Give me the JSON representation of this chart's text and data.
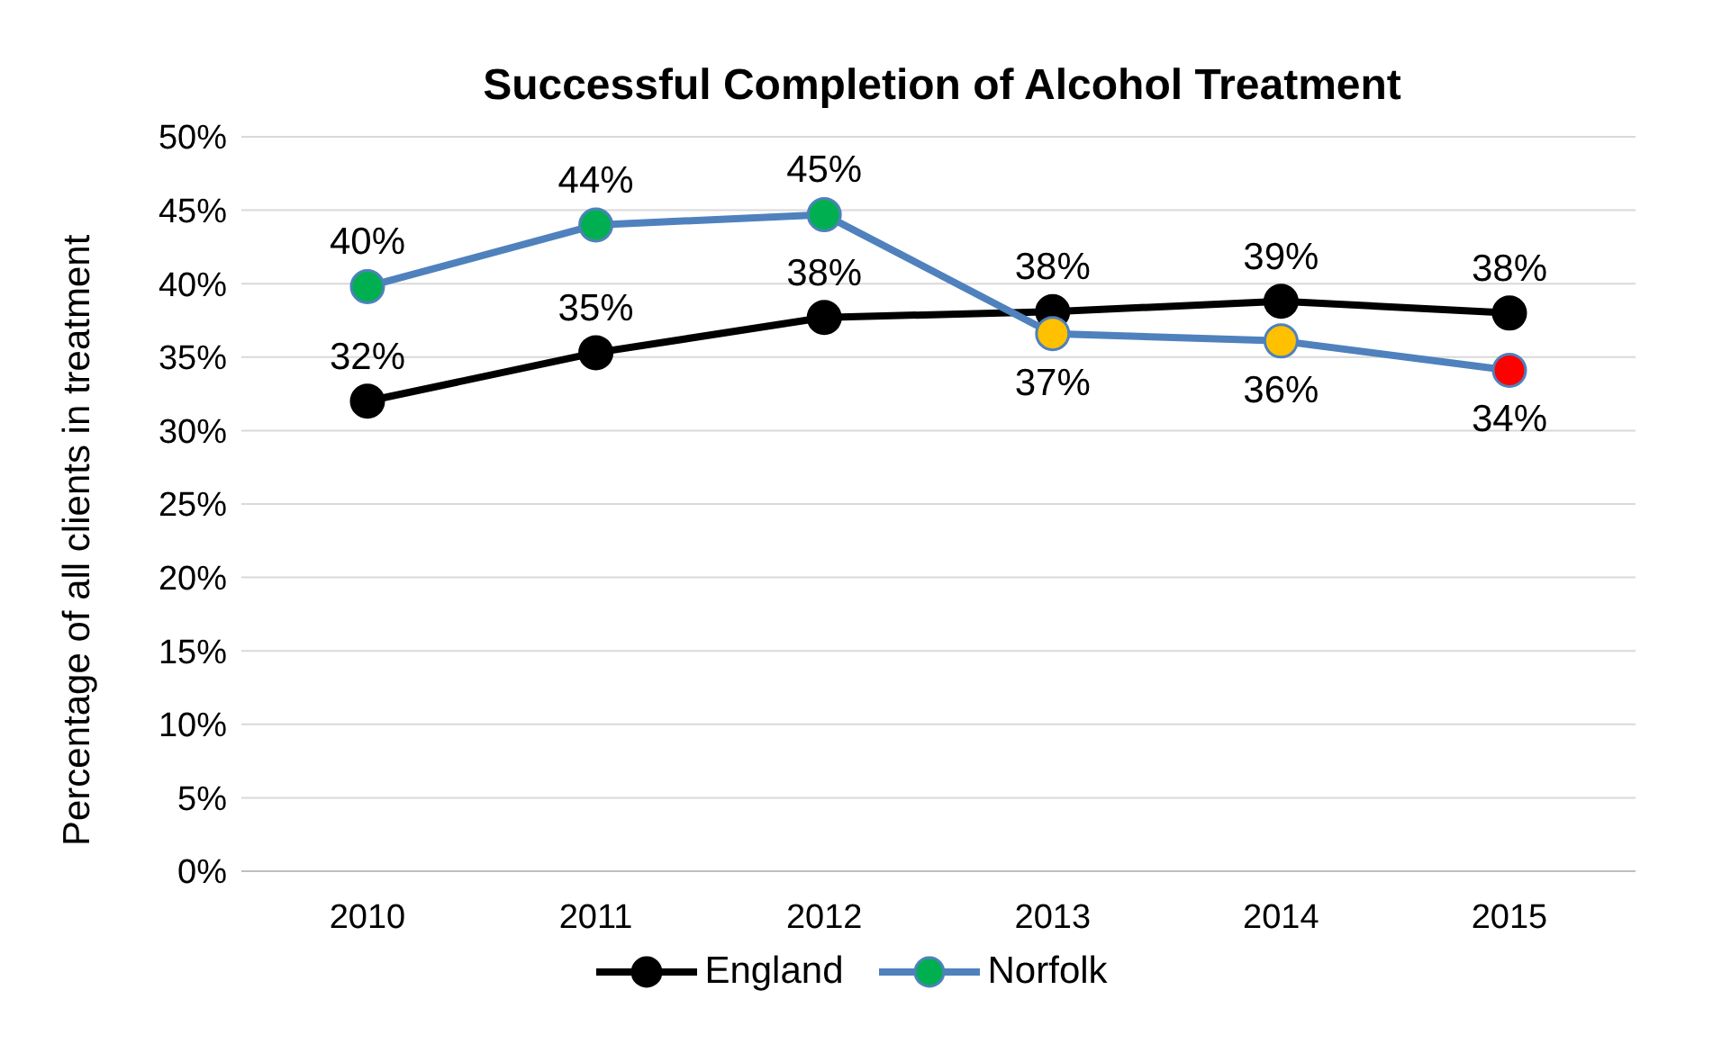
{
  "chart_data": {
    "type": "line",
    "title": "Successful Completion of Alcohol Treatment",
    "ylabel": "Percentage of all clients in treatment",
    "categories": [
      "2010",
      "2011",
      "2012",
      "2013",
      "2014",
      "2015"
    ],
    "series": [
      {
        "name": "England",
        "color": "#000000",
        "values": [
          32,
          35.3,
          37.7,
          38.1,
          38.8,
          38
        ],
        "value_labels": [
          "32%",
          "35%",
          "38%",
          "38%",
          "39%",
          "38%"
        ],
        "colors": [
          "#000000",
          "#000000",
          "#000000",
          "#000000",
          "#000000",
          "#000000"
        ]
      },
      {
        "name": "Norfolk",
        "color": "#4f81bd",
        "values": [
          39.8,
          44,
          44.7,
          36.6,
          36.1,
          34.1
        ],
        "value_labels": [
          "40%",
          "44%",
          "45%",
          "37%",
          "36%",
          "34%"
        ],
        "colors": [
          "#00b050",
          "#00b050",
          "#00b050",
          "#ffc000",
          "#ffc000",
          "#ff0000"
        ]
      }
    ],
    "ylim": [
      0,
      50
    ],
    "yticks": [
      {
        "value": 0,
        "label": "0%"
      },
      {
        "value": 5,
        "label": "5%"
      },
      {
        "value": 10,
        "label": "10%"
      },
      {
        "value": 15,
        "label": "15%"
      },
      {
        "value": 20,
        "label": "20%"
      },
      {
        "value": 25,
        "label": "25%"
      },
      {
        "value": 30,
        "label": "30%"
      },
      {
        "value": 35,
        "label": "35%"
      },
      {
        "value": 40,
        "label": "40%"
      },
      {
        "value": 45,
        "label": "45%"
      },
      {
        "value": 50,
        "label": "50%"
      }
    ],
    "grid": "y",
    "legend": "bottom",
    "marker": "circle",
    "line_style": "solid"
  }
}
